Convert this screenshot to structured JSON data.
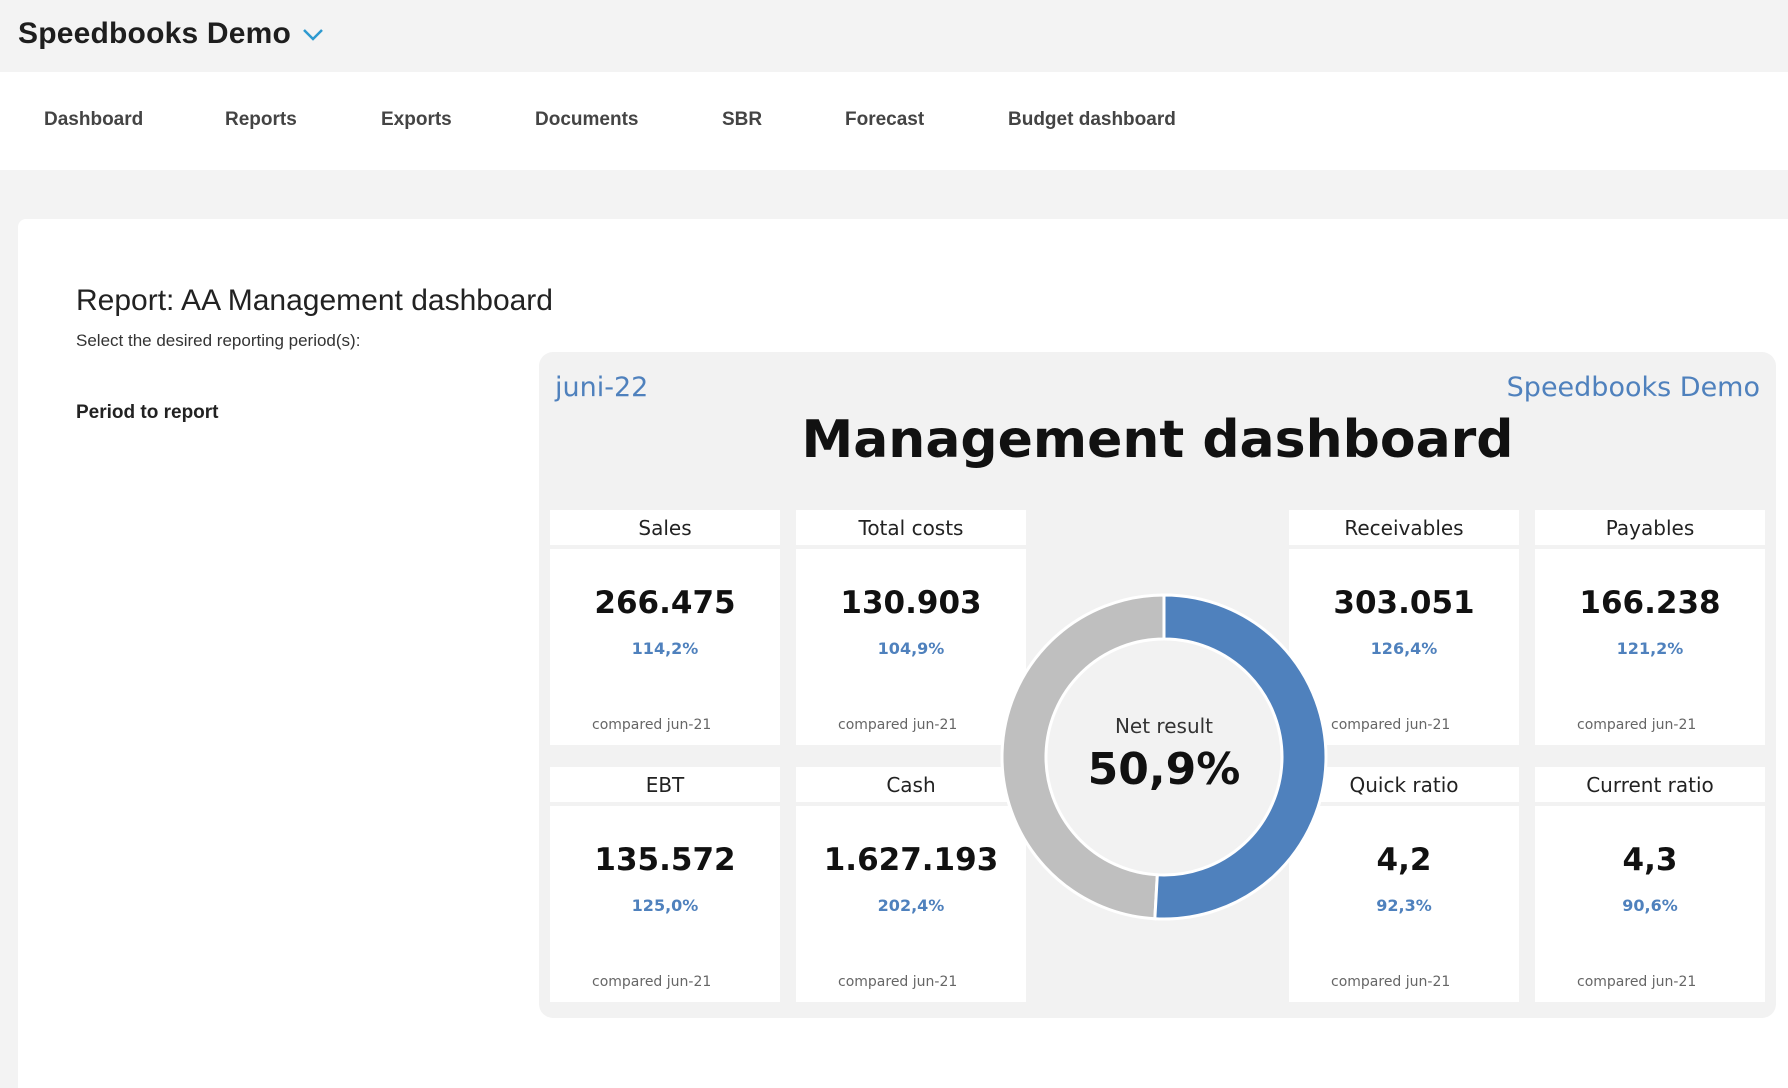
{
  "header": {
    "company_name": "Speedbooks Demo",
    "switcher_icon": "chevron-down-icon"
  },
  "nav": {
    "items": [
      {
        "label": "Dashboard"
      },
      {
        "label": "Reports"
      },
      {
        "label": "Exports"
      },
      {
        "label": "Documents"
      },
      {
        "label": "SBR"
      },
      {
        "label": "Forecast"
      },
      {
        "label": "Budget dashboard"
      }
    ]
  },
  "report": {
    "title": "Report: AA Management dashboard",
    "subtitle": "Select the desired reporting period(s):",
    "period_label": "Period to report"
  },
  "dashboard": {
    "period": "juni-22",
    "company": "Speedbooks Demo",
    "title": "Management dashboard",
    "accent_color": "#4f81bd",
    "kpis": {
      "sales": {
        "label": "Sales",
        "value": "266.475",
        "pct": "114,2%",
        "compared": "compared jun-21"
      },
      "total_costs": {
        "label": "Total costs",
        "value": "130.903",
        "pct": "104,9%",
        "compared": "compared jun-21"
      },
      "receivables": {
        "label": "Receivables",
        "value": "303.051",
        "pct": "126,4%",
        "compared": "compared jun-21"
      },
      "payables": {
        "label": "Payables",
        "value": "166.238",
        "pct": "121,2%",
        "compared": "compared jun-21"
      },
      "ebt": {
        "label": "EBT",
        "value": "135.572",
        "pct": "125,0%",
        "compared": "compared jun-21"
      },
      "cash": {
        "label": "Cash",
        "value": "1.627.193",
        "pct": "202,4%",
        "compared": "compared jun-21"
      },
      "quick_ratio": {
        "label": "Quick ratio",
        "value": "4,2",
        "pct": "92,3%",
        "compared": "compared jun-21"
      },
      "current_ratio": {
        "label": "Current ratio",
        "value": "4,3",
        "pct": "90,6%",
        "compared": "compared jun-21"
      }
    },
    "net_result": {
      "label": "Net result",
      "display": "50,9%",
      "fraction": 0.509,
      "fill_color": "#4f81bd",
      "rest_color": "#bfbfbf"
    }
  }
}
